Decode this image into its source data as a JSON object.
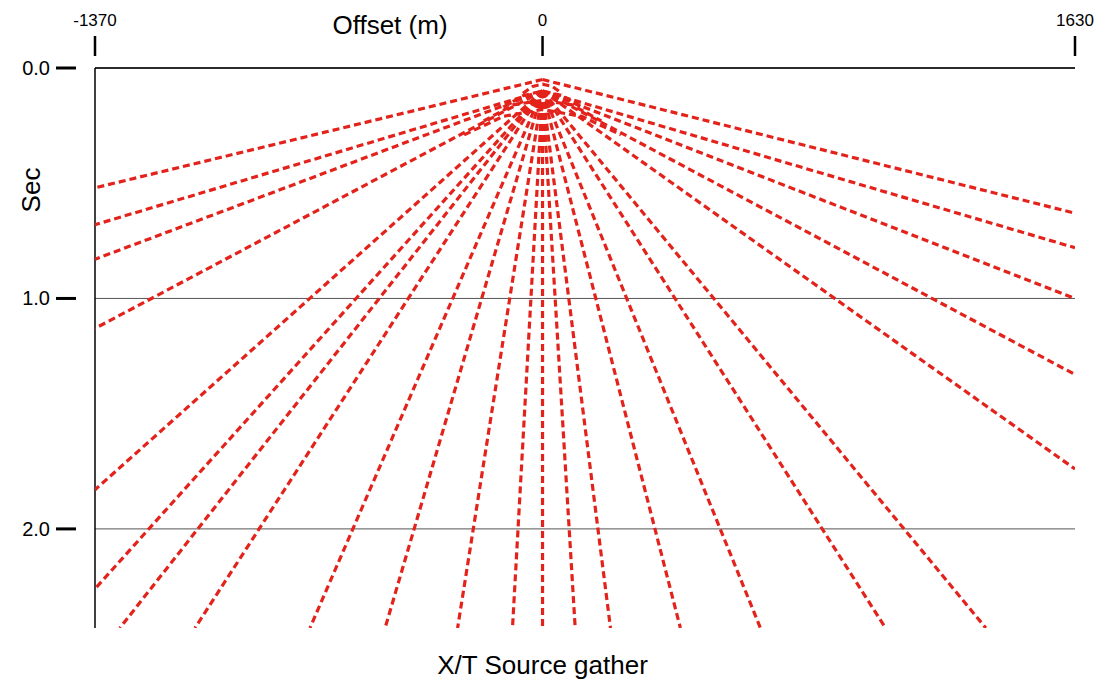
{
  "chart_data": {
    "type": "line",
    "title": "X/T Source gather",
    "x_label": "Offset (m)",
    "y_label": "Sec",
    "xlim": [
      -1370,
      1630
    ],
    "xticks": [
      -1370,
      0,
      1630
    ],
    "ylim": [
      0,
      2.43
    ],
    "yticks": [
      {
        "value": 0,
        "label": "0.0"
      },
      {
        "value": 1,
        "label": "1.0"
      },
      {
        "value": 2,
        "label": "2.0"
      }
    ],
    "grid": true,
    "color": "#e3231b",
    "line_style": "dashed",
    "series": [
      {
        "x": [
          0,
          -1370
        ],
        "values": [
          0.05,
          0.52
        ]
      },
      {
        "x": [
          0,
          1630
        ],
        "values": [
          0.05,
          0.63
        ]
      },
      {
        "x": [
          0,
          -1370
        ],
        "values": [
          0.1,
          0.68
        ]
      },
      {
        "x": [
          0,
          -1370
        ],
        "values": [
          0.1,
          0.83
        ]
      },
      {
        "x": [
          0,
          -1370
        ],
        "values": [
          0.1,
          1.13
        ]
      },
      {
        "x": [
          0,
          -1370
        ],
        "values": [
          0.1,
          1.83
        ]
      },
      {
        "x": [
          0,
          -1370
        ],
        "values": [
          0.1,
          2.26
        ]
      },
      {
        "x": [
          0,
          -1294
        ],
        "values": [
          0.1,
          2.43
        ]
      },
      {
        "x": [
          0,
          -1064
        ],
        "values": [
          0.1,
          2.43
        ]
      },
      {
        "x": [
          0,
          -712
        ],
        "values": [
          0.1,
          2.43
        ]
      },
      {
        "x": [
          0,
          -482
        ],
        "values": [
          0.1,
          2.43
        ]
      },
      {
        "x": [
          0,
          -260
        ],
        "values": [
          0.1,
          2.43
        ]
      },
      {
        "x": [
          0,
          -92
        ],
        "values": [
          0.1,
          2.43
        ]
      },
      {
        "x": [
          0,
          0
        ],
        "values": [
          0.1,
          2.43
        ]
      },
      {
        "x": [
          0,
          1630
        ],
        "values": [
          0.1,
          0.78
        ]
      },
      {
        "x": [
          0,
          1630
        ],
        "values": [
          0.1,
          1.0
        ]
      },
      {
        "x": [
          0,
          1630
        ],
        "values": [
          0.1,
          1.33
        ]
      },
      {
        "x": [
          0,
          1630
        ],
        "values": [
          0.1,
          1.74
        ]
      },
      {
        "x": [
          0,
          1357
        ],
        "values": [
          0.1,
          2.43
        ]
      },
      {
        "x": [
          0,
          1050
        ],
        "values": [
          0.1,
          2.43
        ]
      },
      {
        "x": [
          0,
          667
        ],
        "values": [
          0.1,
          2.43
        ]
      },
      {
        "x": [
          0,
          422
        ],
        "values": [
          0.1,
          2.43
        ]
      },
      {
        "x": [
          0,
          208
        ],
        "values": [
          0.1,
          2.43
        ]
      },
      {
        "x": [
          0,
          100
        ],
        "values": [
          0.1,
          2.43
        ]
      },
      {
        "x": [
          -60,
          -30,
          0,
          30,
          60
        ],
        "values": [
          0.11,
          0.08,
          0.07,
          0.08,
          0.11
        ]
      },
      {
        "x": [
          -120,
          -60,
          0,
          60,
          120
        ],
        "values": [
          0.17,
          0.12,
          0.1,
          0.12,
          0.17
        ]
      },
      {
        "x": [
          -180,
          -90,
          0,
          90,
          180
        ],
        "values": [
          0.23,
          0.16,
          0.14,
          0.16,
          0.23
        ]
      },
      {
        "x": [
          -240,
          -120,
          0,
          120,
          240
        ],
        "values": [
          0.29,
          0.21,
          0.18,
          0.21,
          0.29
        ]
      }
    ]
  }
}
